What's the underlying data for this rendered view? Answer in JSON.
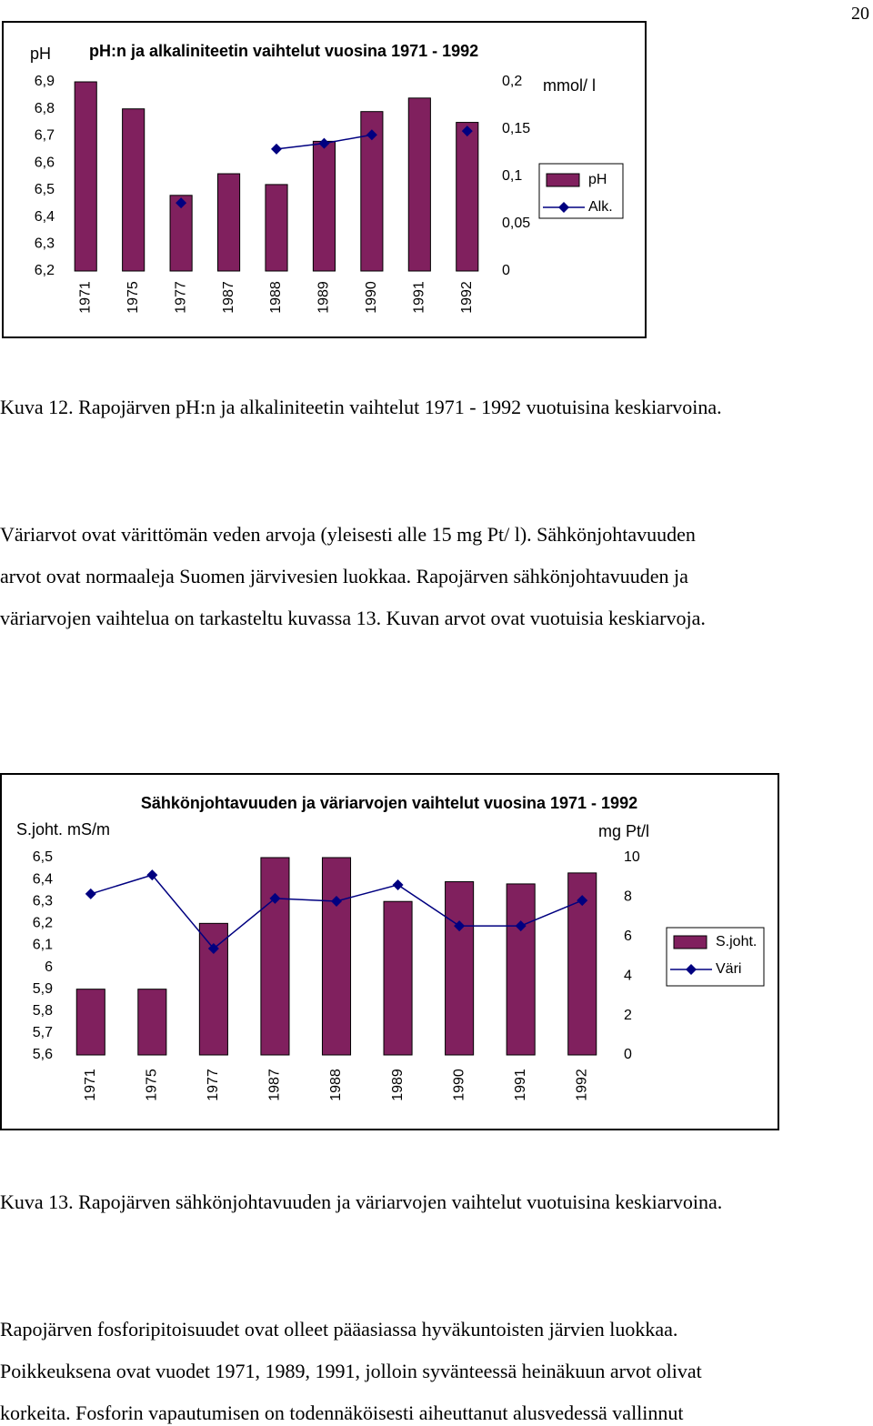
{
  "page_number": "20",
  "chart_data": [
    {
      "type": "combo",
      "title": "pH:n ja alkaliniteetin vaihtelut vuosina 1971 - 1992",
      "y_label": "pH",
      "y2_label": "mmol/ l",
      "categories": [
        "1971",
        "1975",
        "1977",
        "1987",
        "1988",
        "1989",
        "1990",
        "1991",
        "1992"
      ],
      "series": [
        {
          "name": "pH",
          "type": "bar",
          "color": "#80205e",
          "values": [
            6.9,
            6.8,
            6.48,
            6.56,
            6.52,
            6.68,
            6.79,
            6.84,
            6.75
          ]
        },
        {
          "name": "Alk.",
          "type": "line",
          "axis": "y2",
          "color": "#000080",
          "values": [
            null,
            null,
            0.072,
            null,
            0.129,
            0.135,
            0.144,
            null,
            0.148
          ]
        }
      ],
      "ylim": [
        6.2,
        6.9
      ],
      "yticks": [
        {
          "value": 6.2,
          "label": "6,2"
        },
        {
          "value": 6.3,
          "label": "6,3"
        },
        {
          "value": 6.4,
          "label": "6,4"
        },
        {
          "value": 6.5,
          "label": "6,5"
        },
        {
          "value": 6.6,
          "label": "6,6"
        },
        {
          "value": 6.7,
          "label": "6,7"
        },
        {
          "value": 6.8,
          "label": "6,8"
        },
        {
          "value": 6.9,
          "label": "6,9"
        }
      ],
      "y2lim": [
        0,
        0.2
      ],
      "y2ticks": [
        0,
        {
          "value": 0.05,
          "label": "0,05"
        },
        {
          "value": 0.1,
          "label": "0,1"
        },
        {
          "value": 0.15,
          "label": "0,15"
        },
        {
          "value": 0.2,
          "label": "0,2"
        }
      ],
      "legend": "right"
    },
    {
      "type": "combo",
      "title": "Sähkönjohtavuuden ja väriarvojen vaihtelut vuosina 1971 - 1992",
      "y_label": "S.joht. mS/m",
      "y2_label": "mg Pt/l",
      "categories": [
        "1971",
        "1975",
        "1977",
        "1987",
        "1988",
        "1989",
        "1990",
        "1991",
        "1992"
      ],
      "series": [
        {
          "name": "S.joht.",
          "type": "bar",
          "color": "#80205e",
          "values": [
            5.9,
            5.9,
            6.2,
            6.5,
            6.5,
            6.3,
            6.39,
            6.38,
            6.43
          ]
        },
        {
          "name": "Väri",
          "type": "line",
          "axis": "y2",
          "color": "#000080",
          "values": [
            8.16,
            9.12,
            5.39,
            7.93,
            7.79,
            8.62,
            6.54,
            6.54,
            7.83
          ]
        }
      ],
      "ylim": [
        5.6,
        6.5
      ],
      "yticks": [
        {
          "value": 5.6,
          "label": "5,6"
        },
        {
          "value": 5.7,
          "label": "5,7"
        },
        {
          "value": 5.8,
          "label": "5,8"
        },
        {
          "value": 5.9,
          "label": "5,9"
        },
        6,
        {
          "value": 6.1,
          "label": "6,1"
        },
        {
          "value": 6.2,
          "label": "6,2"
        },
        {
          "value": 6.3,
          "label": "6,3"
        },
        {
          "value": 6.4,
          "label": "6,4"
        },
        {
          "value": 6.5,
          "label": "6,5"
        }
      ],
      "y2lim": [
        0,
        10
      ],
      "y2ticks": [
        0,
        2,
        4,
        6,
        8,
        10
      ],
      "legend": "right"
    }
  ],
  "captions": [
    "Kuva 12. Rapojärven pH:n ja alkaliniteetin vaihtelut 1971 - 1992 vuotuisina keskiarvoina.",
    "Kuva 13. Rapojärven sähkönjohtavuuden ja väriarvojen vaihtelut vuotuisina keskiarvoina."
  ],
  "paragraphs": [
    [
      "Väriarvot ovat värittömän veden arvoja (yleisesti alle 15 mg Pt/ l). Sähkönjohtavuuden",
      "arvot ovat normaaleja Suomen järvivesien luokkaa. Rapojärven sähkönjohtavuuden ja",
      "väriarvojen vaihtelua on tarkasteltu kuvassa 13. Kuvan arvot ovat vuotuisia keskiarvoja."
    ],
    [
      "Rapojärven fosforipitoisuudet ovat olleet pääasiassa hyväkuntoisten järvien luokkaa.",
      "Poikkeuksena ovat vuodet 1971, 1989, 1991, jolloin syvänteessä heinäkuun arvot olivat",
      "korkeita. Fosforin vapautumisen on todennäköisesti aiheuttanut alusvedessä vallinnut"
    ]
  ]
}
